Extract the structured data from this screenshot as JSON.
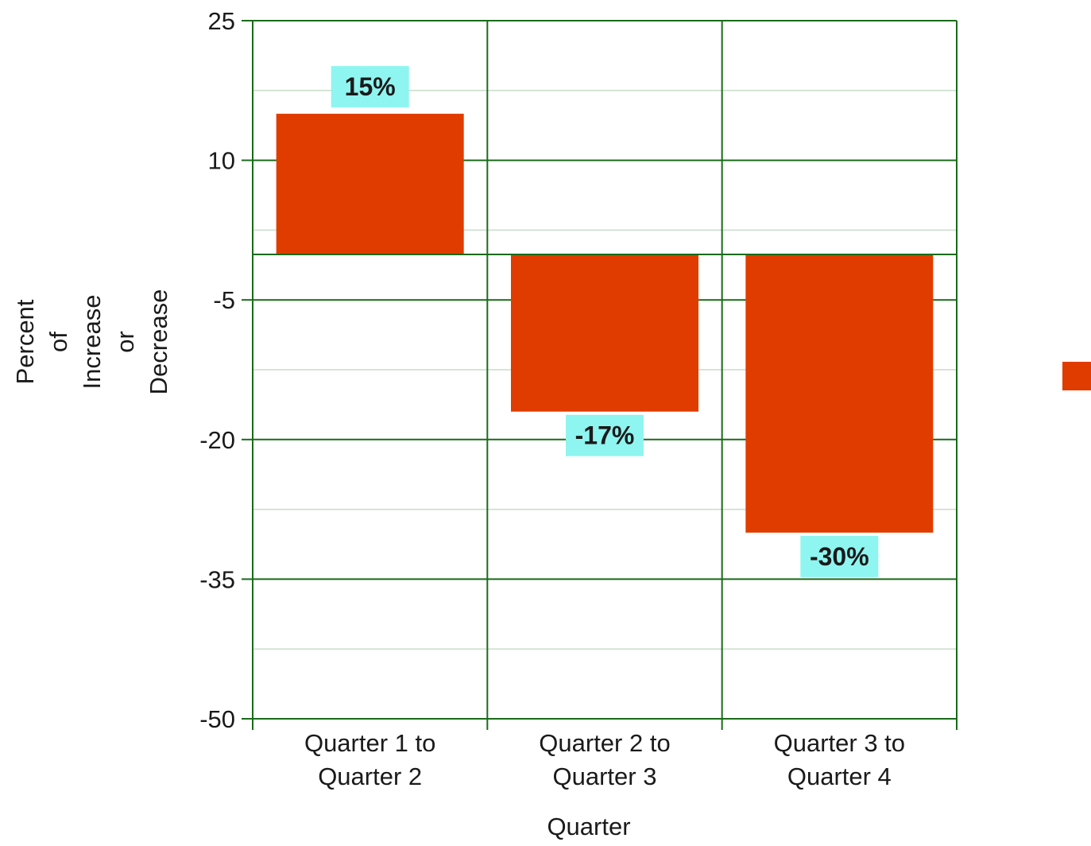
{
  "chart_data": {
    "type": "bar",
    "title": "",
    "xlabel": "Quarter",
    "ylabel_lines": [
      "Percent",
      "of",
      "Increase",
      "or",
      "Decrease"
    ],
    "categories": [
      [
        "Quarter 1 to",
        "Quarter 2"
      ],
      [
        "Quarter 2 to",
        "Quarter 3"
      ],
      [
        "Quarter 3 to",
        "Quarter 4"
      ]
    ],
    "values": [
      15,
      -17,
      -30
    ],
    "data_labels": [
      "15%",
      "-17%",
      "-30%"
    ],
    "ylim": [
      -50,
      25
    ],
    "yticks": [
      25,
      10,
      -5,
      -20,
      -35,
      -50
    ],
    "minor_ticks": [
      17.5,
      2.5,
      -12.5,
      -27.5,
      -42.5
    ],
    "grid": true,
    "legend_position": "right",
    "colors": {
      "bar": "#e03c00",
      "grid": "#1a6b1a",
      "minor_grid": "#c9dcc9",
      "label_bg": "#8ff5f0",
      "text": "#1a1a1a"
    }
  }
}
